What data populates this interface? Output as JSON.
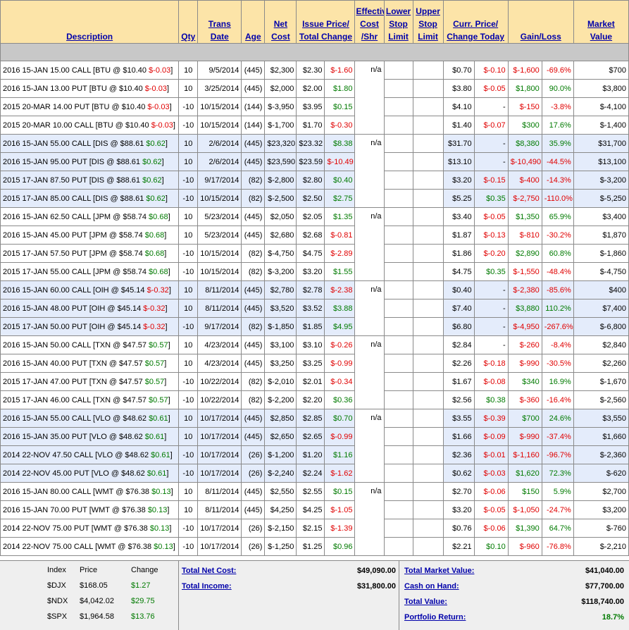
{
  "headers": {
    "description": "Description",
    "qty": "Qty",
    "trans_date": [
      "Trans",
      "Date"
    ],
    "age": "Age",
    "net_cost": [
      "Net",
      "Cost"
    ],
    "issue_price": [
      "Issue Price/",
      "Total Change"
    ],
    "effective_cost": [
      "Effective",
      "Cost",
      "/Shr"
    ],
    "lower_stop": [
      "Lower",
      "Stop",
      "Limit"
    ],
    "upper_stop": [
      "Upper",
      "Stop",
      "Limit"
    ],
    "curr_price": [
      "Curr. Price/",
      "Change Today"
    ],
    "gain_loss": "Gain/Loss",
    "market_value": [
      "Market",
      "Value"
    ]
  },
  "groups": [
    {
      "effective": "n/a",
      "rows": [
        {
          "desc": "2016 15-JAN 15.00 CALL [BTU @ $10.40 ",
          "chg": "$-0.03",
          "chg_pos": false,
          "qty": "10",
          "date": "9/5/2014",
          "age": "(445)",
          "net": "$2,300",
          "issue": "$2.30",
          "total": "$-1.60",
          "total_pos": false,
          "curr": "$0.70",
          "today": "$-0.10",
          "today_pos": false,
          "gain": "$-1,600",
          "pct": "-69.6%",
          "gain_pos": false,
          "mv": "$700"
        },
        {
          "desc": "2016 15-JAN 13.00 PUT [BTU @ $10.40 ",
          "chg": "$-0.03",
          "chg_pos": false,
          "qty": "10",
          "date": "3/25/2014",
          "age": "(445)",
          "net": "$2,000",
          "issue": "$2.00",
          "total": "$1.80",
          "total_pos": true,
          "curr": "$3.80",
          "today": "$-0.05",
          "today_pos": false,
          "gain": "$1,800",
          "pct": "90.0%",
          "gain_pos": true,
          "mv": "$3,800"
        },
        {
          "desc": "2015 20-MAR 14.00 PUT [BTU @ $10.40 ",
          "chg": "$-0.03",
          "chg_pos": false,
          "qty": "-10",
          "date": "10/15/2014",
          "age": "(144)",
          "net": "$-3,950",
          "issue": "$3.95",
          "total": "$0.15",
          "total_pos": true,
          "curr": "$4.10",
          "today": "-",
          "today_pos": null,
          "gain": "$-150",
          "pct": "-3.8%",
          "gain_pos": false,
          "mv": "$-4,100"
        },
        {
          "desc": "2015 20-MAR 10.00 CALL [BTU @ $10.40 ",
          "chg": "$-0.03",
          "chg_pos": false,
          "qty": "-10",
          "date": "10/15/2014",
          "age": "(144)",
          "net": "$-1,700",
          "issue": "$1.70",
          "total": "$-0.30",
          "total_pos": false,
          "curr": "$1.40",
          "today": "$-0.07",
          "today_pos": false,
          "gain": "$300",
          "pct": "17.6%",
          "gain_pos": true,
          "mv": "$-1,400"
        }
      ]
    },
    {
      "effective": "n/a",
      "rows": [
        {
          "desc": "2016 15-JAN 55.00 CALL [DIS @ $88.61 ",
          "chg": "$0.62",
          "chg_pos": true,
          "qty": "10",
          "date": "2/6/2014",
          "age": "(445)",
          "net": "$23,320",
          "issue": "$23.32",
          "total": "$8.38",
          "total_pos": true,
          "curr": "$31.70",
          "today": "-",
          "today_pos": null,
          "gain": "$8,380",
          "pct": "35.9%",
          "gain_pos": true,
          "mv": "$31,700"
        },
        {
          "desc": "2016 15-JAN 95.00 PUT [DIS @ $88.61 ",
          "chg": "$0.62",
          "chg_pos": true,
          "qty": "10",
          "date": "2/6/2014",
          "age": "(445)",
          "net": "$23,590",
          "issue": "$23.59",
          "total": "$-10.49",
          "total_pos": false,
          "curr": "$13.10",
          "today": "-",
          "today_pos": null,
          "gain": "$-10,490",
          "pct": "-44.5%",
          "gain_pos": false,
          "mv": "$13,100"
        },
        {
          "desc": "2015 17-JAN 87.50 PUT [DIS @ $88.61 ",
          "chg": "$0.62",
          "chg_pos": true,
          "qty": "-10",
          "date": "9/17/2014",
          "age": "(82)",
          "net": "$-2,800",
          "issue": "$2.80",
          "total": "$0.40",
          "total_pos": true,
          "curr": "$3.20",
          "today": "$-0.15",
          "today_pos": false,
          "gain": "$-400",
          "pct": "-14.3%",
          "gain_pos": false,
          "mv": "$-3,200"
        },
        {
          "desc": "2015 17-JAN 85.00 CALL [DIS @ $88.61 ",
          "chg": "$0.62",
          "chg_pos": true,
          "qty": "-10",
          "date": "10/15/2014",
          "age": "(82)",
          "net": "$-2,500",
          "issue": "$2.50",
          "total": "$2.75",
          "total_pos": true,
          "curr": "$5.25",
          "today": "$0.35",
          "today_pos": true,
          "gain": "$-2,750",
          "pct": "-110.0%",
          "gain_pos": false,
          "mv": "$-5,250"
        }
      ]
    },
    {
      "effective": "n/a",
      "rows": [
        {
          "desc": "2016 15-JAN 62.50 CALL [JPM @ $58.74 ",
          "chg": "$0.68",
          "chg_pos": true,
          "qty": "10",
          "date": "5/23/2014",
          "age": "(445)",
          "net": "$2,050",
          "issue": "$2.05",
          "total": "$1.35",
          "total_pos": true,
          "curr": "$3.40",
          "today": "$-0.05",
          "today_pos": false,
          "gain": "$1,350",
          "pct": "65.9%",
          "gain_pos": true,
          "mv": "$3,400"
        },
        {
          "desc": "2016 15-JAN 45.00 PUT [JPM @ $58.74 ",
          "chg": "$0.68",
          "chg_pos": true,
          "qty": "10",
          "date": "5/23/2014",
          "age": "(445)",
          "net": "$2,680",
          "issue": "$2.68",
          "total": "$-0.81",
          "total_pos": false,
          "curr": "$1.87",
          "today": "$-0.13",
          "today_pos": false,
          "gain": "$-810",
          "pct": "-30.2%",
          "gain_pos": false,
          "mv": "$1,870"
        },
        {
          "desc": "2015 17-JAN 57.50 PUT [JPM @ $58.74 ",
          "chg": "$0.68",
          "chg_pos": true,
          "qty": "-10",
          "date": "10/15/2014",
          "age": "(82)",
          "net": "$-4,750",
          "issue": "$4.75",
          "total": "$-2.89",
          "total_pos": false,
          "curr": "$1.86",
          "today": "$-0.20",
          "today_pos": false,
          "gain": "$2,890",
          "pct": "60.8%",
          "gain_pos": true,
          "mv": "$-1,860"
        },
        {
          "desc": "2015 17-JAN 55.00 CALL [JPM @ $58.74 ",
          "chg": "$0.68",
          "chg_pos": true,
          "qty": "-10",
          "date": "10/15/2014",
          "age": "(82)",
          "net": "$-3,200",
          "issue": "$3.20",
          "total": "$1.55",
          "total_pos": true,
          "curr": "$4.75",
          "today": "$0.35",
          "today_pos": true,
          "gain": "$-1,550",
          "pct": "-48.4%",
          "gain_pos": false,
          "mv": "$-4,750"
        }
      ]
    },
    {
      "effective": "n/a",
      "rows": [
        {
          "desc": "2016 15-JAN 60.00 CALL [OIH @ $45.14 ",
          "chg": "$-0.32",
          "chg_pos": false,
          "qty": "10",
          "date": "8/11/2014",
          "age": "(445)",
          "net": "$2,780",
          "issue": "$2.78",
          "total": "$-2.38",
          "total_pos": false,
          "curr": "$0.40",
          "today": "-",
          "today_pos": null,
          "gain": "$-2,380",
          "pct": "-85.6%",
          "gain_pos": false,
          "mv": "$400"
        },
        {
          "desc": "2016 15-JAN 48.00 PUT [OIH @ $45.14 ",
          "chg": "$-0.32",
          "chg_pos": false,
          "qty": "10",
          "date": "8/11/2014",
          "age": "(445)",
          "net": "$3,520",
          "issue": "$3.52",
          "total": "$3.88",
          "total_pos": true,
          "curr": "$7.40",
          "today": "-",
          "today_pos": null,
          "gain": "$3,880",
          "pct": "110.2%",
          "gain_pos": true,
          "mv": "$7,400"
        },
        {
          "desc": "2015 17-JAN 50.00 PUT [OIH @ $45.14 ",
          "chg": "$-0.32",
          "chg_pos": false,
          "qty": "-10",
          "date": "9/17/2014",
          "age": "(82)",
          "net": "$-1,850",
          "issue": "$1.85",
          "total": "$4.95",
          "total_pos": true,
          "curr": "$6.80",
          "today": "-",
          "today_pos": null,
          "gain": "$-4,950",
          "pct": "-267.6%",
          "gain_pos": false,
          "mv": "$-6,800"
        }
      ]
    },
    {
      "effective": "n/a",
      "rows": [
        {
          "desc": "2016 15-JAN 50.00 CALL [TXN @ $47.57 ",
          "chg": "$0.57",
          "chg_pos": true,
          "qty": "10",
          "date": "4/23/2014",
          "age": "(445)",
          "net": "$3,100",
          "issue": "$3.10",
          "total": "$-0.26",
          "total_pos": false,
          "curr": "$2.84",
          "today": "-",
          "today_pos": null,
          "gain": "$-260",
          "pct": "-8.4%",
          "gain_pos": false,
          "mv": "$2,840"
        },
        {
          "desc": "2016 15-JAN 40.00 PUT [TXN @ $47.57 ",
          "chg": "$0.57",
          "chg_pos": true,
          "qty": "10",
          "date": "4/23/2014",
          "age": "(445)",
          "net": "$3,250",
          "issue": "$3.25",
          "total": "$-0.99",
          "total_pos": false,
          "curr": "$2.26",
          "today": "$-0.18",
          "today_pos": false,
          "gain": "$-990",
          "pct": "-30.5%",
          "gain_pos": false,
          "mv": "$2,260"
        },
        {
          "desc": "2015 17-JAN 47.00 PUT [TXN @ $47.57 ",
          "chg": "$0.57",
          "chg_pos": true,
          "qty": "-10",
          "date": "10/22/2014",
          "age": "(82)",
          "net": "$-2,010",
          "issue": "$2.01",
          "total": "$-0.34",
          "total_pos": false,
          "curr": "$1.67",
          "today": "$-0.08",
          "today_pos": false,
          "gain": "$340",
          "pct": "16.9%",
          "gain_pos": true,
          "mv": "$-1,670"
        },
        {
          "desc": "2015 17-JAN 46.00 CALL [TXN @ $47.57 ",
          "chg": "$0.57",
          "chg_pos": true,
          "qty": "-10",
          "date": "10/22/2014",
          "age": "(82)",
          "net": "$-2,200",
          "issue": "$2.20",
          "total": "$0.36",
          "total_pos": true,
          "curr": "$2.56",
          "today": "$0.38",
          "today_pos": true,
          "gain": "$-360",
          "pct": "-16.4%",
          "gain_pos": false,
          "mv": "$-2,560"
        }
      ]
    },
    {
      "effective": "n/a",
      "rows": [
        {
          "desc": "2016 15-JAN 55.00 CALL [VLO @ $48.62 ",
          "chg": "$0.61",
          "chg_pos": true,
          "qty": "10",
          "date": "10/17/2014",
          "age": "(445)",
          "net": "$2,850",
          "issue": "$2.85",
          "total": "$0.70",
          "total_pos": true,
          "curr": "$3.55",
          "today": "$-0.39",
          "today_pos": false,
          "gain": "$700",
          "pct": "24.6%",
          "gain_pos": true,
          "mv": "$3,550"
        },
        {
          "desc": "2016 15-JAN 35.00 PUT [VLO @ $48.62 ",
          "chg": "$0.61",
          "chg_pos": true,
          "qty": "10",
          "date": "10/17/2014",
          "age": "(445)",
          "net": "$2,650",
          "issue": "$2.65",
          "total": "$-0.99",
          "total_pos": false,
          "curr": "$1.66",
          "today": "$-0.09",
          "today_pos": false,
          "gain": "$-990",
          "pct": "-37.4%",
          "gain_pos": false,
          "mv": "$1,660"
        },
        {
          "desc": "2014 22-NOV 47.50 CALL [VLO @ $48.62 ",
          "chg": "$0.61",
          "chg_pos": true,
          "qty": "-10",
          "date": "10/17/2014",
          "age": "(26)",
          "net": "$-1,200",
          "issue": "$1.20",
          "total": "$1.16",
          "total_pos": true,
          "curr": "$2.36",
          "today": "$-0.01",
          "today_pos": false,
          "gain": "$-1,160",
          "pct": "-96.7%",
          "gain_pos": false,
          "mv": "$-2,360"
        },
        {
          "desc": "2014 22-NOV 45.00 PUT [VLO @ $48.62 ",
          "chg": "$0.61",
          "chg_pos": true,
          "qty": "-10",
          "date": "10/17/2014",
          "age": "(26)",
          "net": "$-2,240",
          "issue": "$2.24",
          "total": "$-1.62",
          "total_pos": false,
          "curr": "$0.62",
          "today": "$-0.03",
          "today_pos": false,
          "gain": "$1,620",
          "pct": "72.3%",
          "gain_pos": true,
          "mv": "$-620"
        }
      ]
    },
    {
      "effective": "n/a",
      "rows": [
        {
          "desc": "2016 15-JAN 80.00 CALL [WMT @ $76.38 ",
          "chg": "$0.13",
          "chg_pos": true,
          "qty": "10",
          "date": "8/11/2014",
          "age": "(445)",
          "net": "$2,550",
          "issue": "$2.55",
          "total": "$0.15",
          "total_pos": true,
          "curr": "$2.70",
          "today": "$-0.06",
          "today_pos": false,
          "gain": "$150",
          "pct": "5.9%",
          "gain_pos": true,
          "mv": "$2,700"
        },
        {
          "desc": "2016 15-JAN 70.00 PUT [WMT @ $76.38 ",
          "chg": "$0.13",
          "chg_pos": true,
          "qty": "10",
          "date": "8/11/2014",
          "age": "(445)",
          "net": "$4,250",
          "issue": "$4.25",
          "total": "$-1.05",
          "total_pos": false,
          "curr": "$3.20",
          "today": "$-0.05",
          "today_pos": false,
          "gain": "$-1,050",
          "pct": "-24.7%",
          "gain_pos": false,
          "mv": "$3,200"
        },
        {
          "desc": "2014 22-NOV 75.00 PUT [WMT @ $76.38 ",
          "chg": "$0.13",
          "chg_pos": true,
          "qty": "-10",
          "date": "10/17/2014",
          "age": "(26)",
          "net": "$-2,150",
          "issue": "$2.15",
          "total": "$-1.39",
          "total_pos": false,
          "curr": "$0.76",
          "today": "$-0.06",
          "today_pos": false,
          "gain": "$1,390",
          "pct": "64.7%",
          "gain_pos": true,
          "mv": "$-760"
        },
        {
          "desc": "2014 22-NOV 75.00 CALL [WMT @ $76.38 ",
          "chg": "$0.13",
          "chg_pos": true,
          "qty": "-10",
          "date": "10/17/2014",
          "age": "(26)",
          "net": "$-1,250",
          "issue": "$1.25",
          "total": "$0.96",
          "total_pos": true,
          "curr": "$2.21",
          "today": "$0.10",
          "today_pos": true,
          "gain": "$-960",
          "pct": "-76.8%",
          "gain_pos": false,
          "mv": "$-2,210"
        }
      ]
    }
  ],
  "index_table": {
    "headers": {
      "index": "Index",
      "price": "Price",
      "change": "Change"
    },
    "rows": [
      {
        "index": "$DJX",
        "price": "$168.05",
        "change": "$1.27"
      },
      {
        "index": "$NDX",
        "price": "$4,042.02",
        "change": "$29.75"
      },
      {
        "index": "$SPX",
        "price": "$1,964.58",
        "change": "$13.76"
      }
    ]
  },
  "totals": {
    "total_net_cost_label": "Total Net Cost:",
    "total_net_cost": "$49,090.00",
    "total_income_label": "Total Income:",
    "total_income": "$31,800.00",
    "total_market_value_label": "Total Market Value:",
    "total_market_value": "$41,040.00",
    "cash_on_hand_label": "Cash on Hand:",
    "cash_on_hand": "$77,700.00",
    "total_value_label": "Total Value:",
    "total_value": "$118,740.00",
    "portfolio_return_label": "Portfolio Return:",
    "portfolio_return": "18.7%"
  },
  "colors": {
    "header_bg": "#fce4a8",
    "link": "#0000aa",
    "negative": "#e00000",
    "positive": "#007a00",
    "alt_row": "#e4ecfb",
    "separator": "#c8c8c8"
  }
}
